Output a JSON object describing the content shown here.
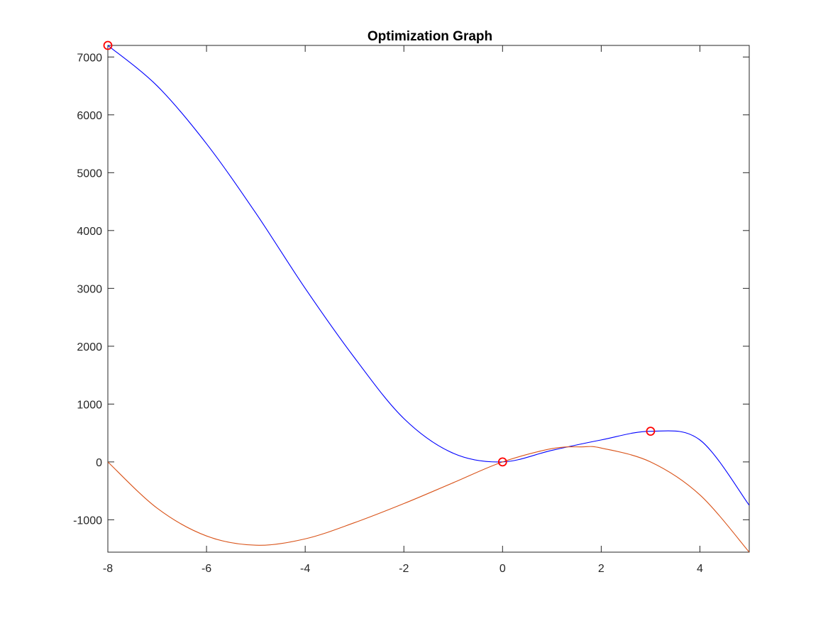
{
  "chart_data": {
    "type": "line",
    "title": "Optimization Graph",
    "xlabel": "",
    "ylabel": "",
    "xlim": [
      -8,
      5
    ],
    "ylim": [
      -1560,
      7200
    ],
    "x_ticks": [
      -8,
      -6,
      -4,
      -2,
      0,
      2,
      4
    ],
    "x_tick_labels": [
      "-8",
      "-6",
      "-4",
      "-2",
      "0",
      "2",
      "4"
    ],
    "y_ticks": [
      -1000,
      0,
      1000,
      2000,
      3000,
      4000,
      5000,
      6000,
      7000
    ],
    "y_tick_labels": [
      "-1000",
      "0",
      "1000",
      "2000",
      "3000",
      "4000",
      "5000",
      "6000",
      "7000"
    ],
    "grid": false,
    "box": true,
    "colors": {
      "series_1": "#0000ff",
      "series_2": "#d95319",
      "markers": "#ff0000",
      "axes": "#262626"
    },
    "series": [
      {
        "x": [
          -8,
          -7,
          -6,
          -5,
          -4,
          -3,
          -2,
          -1,
          0,
          1,
          2,
          3,
          4,
          5
        ],
        "values": [
          7200,
          6500,
          5500,
          4300,
          3000,
          1800,
          750,
          150,
          0,
          200,
          380,
          530,
          380,
          -750
        ]
      },
      {
        "x": [
          -8,
          -7,
          -6,
          -5,
          -4,
          -3,
          -2,
          -1,
          0,
          1,
          1.6,
          2,
          3,
          4,
          5
        ],
        "values": [
          0,
          -800,
          -1280,
          -1440,
          -1330,
          -1050,
          -720,
          -360,
          0,
          230,
          260,
          240,
          0,
          -570,
          -1560
        ]
      }
    ],
    "markers": [
      {
        "x": -8,
        "y": 7200
      },
      {
        "x": 0,
        "y": 0
      },
      {
        "x": 3,
        "y": 530
      }
    ]
  }
}
